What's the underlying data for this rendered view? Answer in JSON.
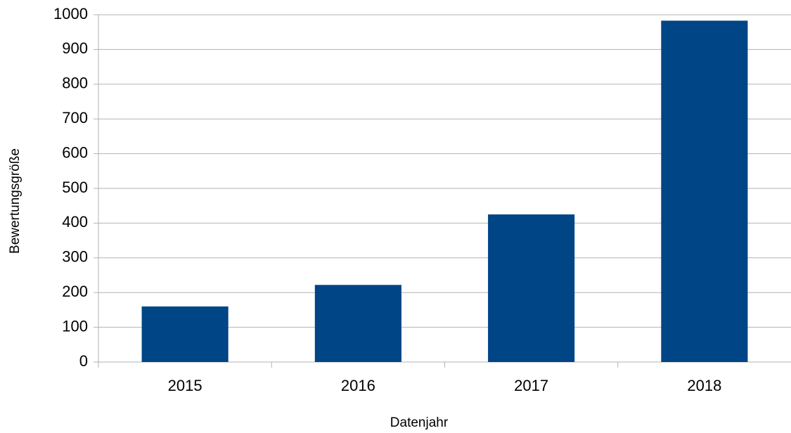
{
  "chart_data": {
    "type": "bar",
    "x_label": "Datenjahr",
    "y_label": "Bewertungsgröße",
    "categories": [
      "2015",
      "2016",
      "2017",
      "2018"
    ],
    "values": [
      160,
      222,
      425,
      983
    ],
    "color": "#004586",
    "ylim": [
      0,
      1000
    ],
    "yticks": [
      0,
      100,
      200,
      300,
      400,
      500,
      600,
      700,
      800,
      900,
      1000
    ],
    "grid": true
  }
}
